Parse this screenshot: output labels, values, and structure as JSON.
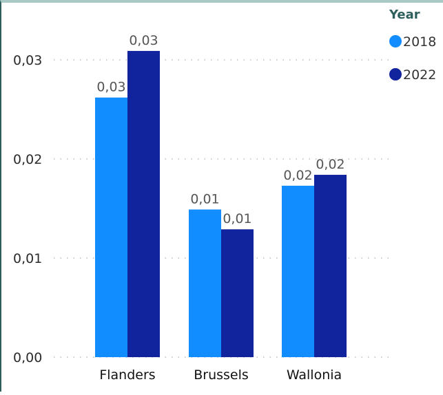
{
  "chart_data": {
    "type": "bar",
    "categories": [
      "Flanders",
      "Brussels",
      "Wallonia"
    ],
    "series": [
      {
        "name": "2018",
        "values": [
          0.0262,
          0.0149,
          0.0173
        ],
        "labels": [
          "0,03",
          "0,01",
          "0,02"
        ],
        "color": "#118dff"
      },
      {
        "name": "2022",
        "values": [
          0.0309,
          0.0129,
          0.0184
        ],
        "labels": [
          "0,03",
          "0,01",
          "0,02"
        ],
        "color": "#12239e"
      }
    ],
    "ylim": [
      0,
      0.035
    ],
    "yticks": [
      {
        "value": 0.0,
        "label": "0,00"
      },
      {
        "value": 0.01,
        "label": "0,01"
      },
      {
        "value": 0.02,
        "label": "0,02"
      },
      {
        "value": 0.03,
        "label": "0,03"
      }
    ],
    "grid": true,
    "legend": {
      "title": "Year",
      "placement": "top-right",
      "title_color": "#2f5f5c"
    },
    "gridline_color": "#9fb8b0"
  }
}
